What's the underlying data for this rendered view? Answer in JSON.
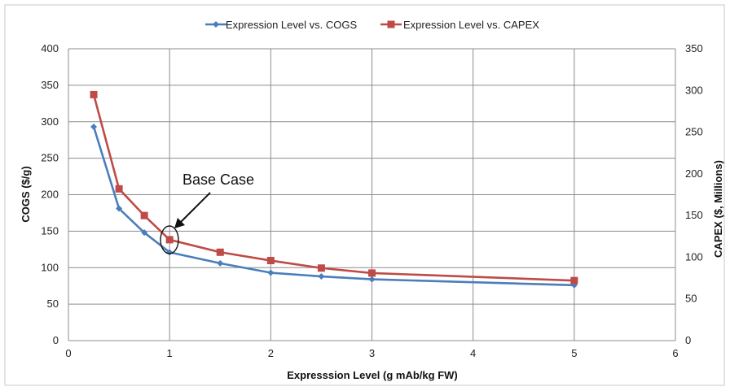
{
  "chart_data": {
    "type": "line",
    "title": "",
    "xlabel": "Expresssion Level (g mAb/kg FW)",
    "ylabel": "COGS ($/g)",
    "y2label": "CAPEX ($, Millions)",
    "xlim": [
      0,
      6
    ],
    "ylim": [
      0,
      400
    ],
    "y2lim": [
      0,
      350
    ],
    "x_ticks": [
      "0",
      "1",
      "2",
      "3",
      "4",
      "5",
      "6"
    ],
    "y_ticks": [
      "0",
      "50",
      "100",
      "150",
      "200",
      "250",
      "300",
      "350",
      "400"
    ],
    "y2_ticks": [
      "0",
      "50",
      "100",
      "150",
      "200",
      "250",
      "300",
      "350"
    ],
    "grid": true,
    "legend_position": "top",
    "series": [
      {
        "name": "Expression Level vs. COGS",
        "axis": "left",
        "color": "#4a7ebb",
        "marker": "diamond",
        "x": [
          0.25,
          0.5,
          0.75,
          1,
          1.5,
          2,
          2.5,
          3,
          5
        ],
        "values": [
          293,
          181,
          148,
          121,
          106,
          93,
          88,
          84,
          76
        ]
      },
      {
        "name": "Expression Level vs. CAPEX",
        "axis": "right",
        "color": "#be4b48",
        "marker": "square",
        "x": [
          0.25,
          0.5,
          0.75,
          1,
          1.5,
          2,
          2.5,
          3,
          5
        ],
        "values": [
          295,
          182,
          150,
          121,
          106,
          96,
          87,
          81,
          72
        ]
      }
    ],
    "annotations": [
      {
        "text": "Base Case",
        "x": 1,
        "y": 121
      }
    ]
  }
}
